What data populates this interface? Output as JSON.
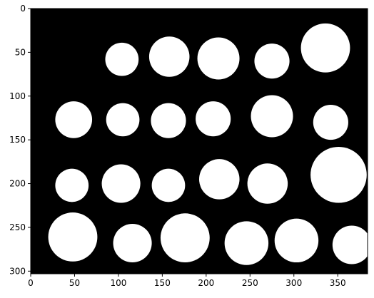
{
  "colors": {
    "background": "#000000",
    "foreground": "#ffffff",
    "axis": "#000000"
  },
  "axes": {
    "x_ticks": [
      0,
      50,
      100,
      150,
      200,
      250,
      300,
      350
    ],
    "y_ticks": [
      0,
      50,
      100,
      150,
      200,
      250,
      300
    ],
    "x_range": [
      0,
      384
    ],
    "y_range": [
      303,
      0
    ],
    "grid": false
  },
  "image": {
    "description_type": "binary-mask",
    "objects": [
      {
        "cx": 104,
        "cy": 58,
        "r": 19
      },
      {
        "cx": 158,
        "cy": 55,
        "r": 23
      },
      {
        "cx": 214,
        "cy": 57,
        "r": 24
      },
      {
        "cx": 275,
        "cy": 60,
        "r": 20
      },
      {
        "cx": 336,
        "cy": 45,
        "r": 28
      },
      {
        "cx": 49,
        "cy": 127,
        "r": 21
      },
      {
        "cx": 105,
        "cy": 127,
        "r": 19
      },
      {
        "cx": 157,
        "cy": 128,
        "r": 20
      },
      {
        "cx": 208,
        "cy": 126,
        "r": 20
      },
      {
        "cx": 275,
        "cy": 123,
        "r": 24
      },
      {
        "cx": 342,
        "cy": 130,
        "r": 20
      },
      {
        "cx": 47,
        "cy": 202,
        "r": 19
      },
      {
        "cx": 103,
        "cy": 200,
        "r": 22
      },
      {
        "cx": 157,
        "cy": 202,
        "r": 19
      },
      {
        "cx": 215,
        "cy": 195,
        "r": 23
      },
      {
        "cx": 270,
        "cy": 200,
        "r": 23
      },
      {
        "cx": 351,
        "cy": 190,
        "r": 32
      },
      {
        "cx": 48,
        "cy": 261,
        "r": 28
      },
      {
        "cx": 116,
        "cy": 268,
        "r": 22
      },
      {
        "cx": 176,
        "cy": 262,
        "r": 28
      },
      {
        "cx": 246,
        "cy": 268,
        "r": 25
      },
      {
        "cx": 303,
        "cy": 265,
        "r": 25
      },
      {
        "cx": 366,
        "cy": 270,
        "r": 22
      }
    ]
  }
}
